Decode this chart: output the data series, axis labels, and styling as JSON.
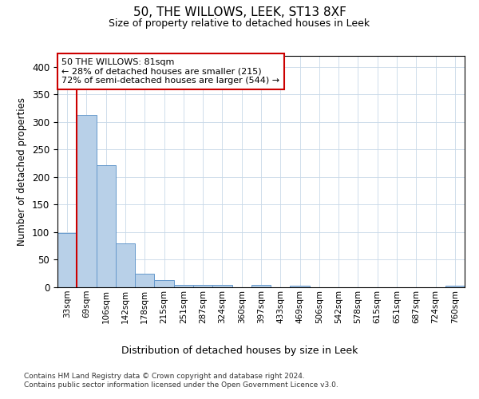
{
  "title1": "50, THE WILLOWS, LEEK, ST13 8XF",
  "title2": "Size of property relative to detached houses in Leek",
  "xlabel": "Distribution of detached houses by size in Leek",
  "ylabel": "Number of detached properties",
  "footnote": "Contains HM Land Registry data © Crown copyright and database right 2024.\nContains public sector information licensed under the Open Government Licence v3.0.",
  "bar_labels": [
    "33sqm",
    "69sqm",
    "106sqm",
    "142sqm",
    "178sqm",
    "215sqm",
    "251sqm",
    "287sqm",
    "324sqm",
    "360sqm",
    "397sqm",
    "433sqm",
    "469sqm",
    "506sqm",
    "542sqm",
    "578sqm",
    "615sqm",
    "651sqm",
    "687sqm",
    "724sqm",
    "760sqm"
  ],
  "bar_values": [
    98,
    313,
    222,
    80,
    25,
    13,
    5,
    4,
    4,
    0,
    5,
    0,
    3,
    0,
    0,
    0,
    0,
    0,
    0,
    0,
    3
  ],
  "bar_color": "#b8d0e8",
  "bar_edge_color": "#6699cc",
  "property_line_x": 0.5,
  "annotation_text": "50 THE WILLOWS: 81sqm\n← 28% of detached houses are smaller (215)\n72% of semi-detached houses are larger (544) →",
  "annotation_box_color": "#ffffff",
  "annotation_box_edge_color": "#cc0000",
  "line_color": "#cc0000",
  "ylim": [
    0,
    420
  ],
  "yticks": [
    0,
    50,
    100,
    150,
    200,
    250,
    300,
    350,
    400
  ],
  "background_color": "#ffffff",
  "grid_color": "#c8d8e8"
}
